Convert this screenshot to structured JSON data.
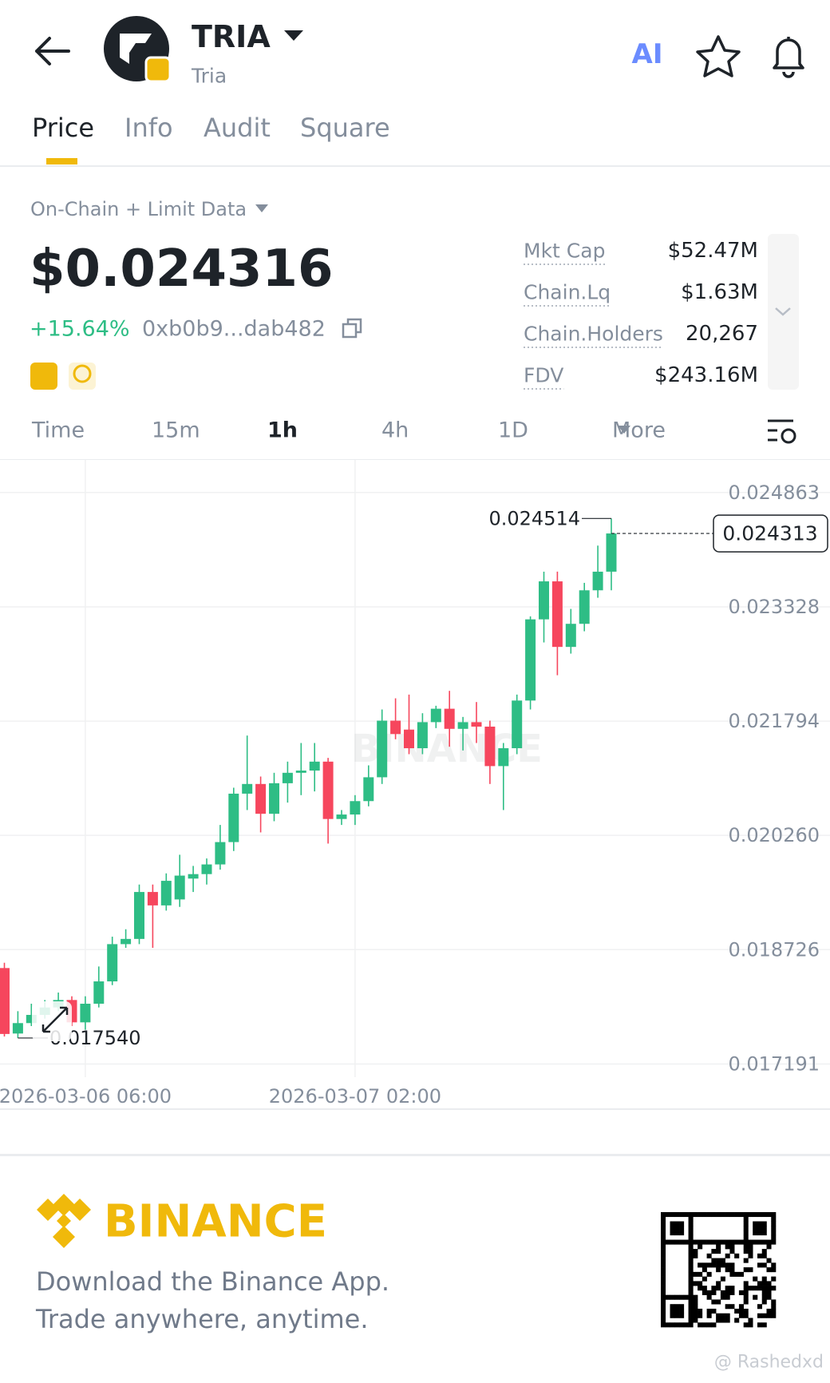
{
  "header": {
    "symbol": "TRIA",
    "name": "Tria",
    "ai_label": "AI"
  },
  "tabs": [
    "Price",
    "Info",
    "Audit",
    "Square"
  ],
  "active_tab": 0,
  "data_source": "On-Chain + Limit Data",
  "price": "$0.024316",
  "change": "+15.64%",
  "address": "0xb0b9...dab482",
  "stats": [
    {
      "label": "Mkt Cap",
      "value": "$52.47M"
    },
    {
      "label": "Chain.Lq",
      "value": "$1.63M"
    },
    {
      "label": "Chain.Holders",
      "value": "20,267"
    },
    {
      "label": "FDV",
      "value": "$243.16M"
    }
  ],
  "timeframes": [
    "Time",
    "15m",
    "1h",
    "4h",
    "1D",
    "More"
  ],
  "active_timeframe": 2,
  "chart_data": {
    "type": "candlestick",
    "categories": [
      null,
      null,
      null,
      null,
      null,
      null,
      "2026-03-06 06:00",
      null,
      null,
      null,
      null,
      null,
      null,
      null,
      null,
      null,
      null,
      null,
      null,
      null,
      null,
      null,
      null,
      null,
      null,
      null,
      "2026-03-07 02:00",
      null,
      null,
      null,
      null,
      null,
      null,
      null,
      null,
      null,
      null,
      null,
      null,
      null,
      null,
      null,
      null,
      null,
      null,
      null
    ],
    "open": [
      0.018479,
      0.0176,
      0.01774,
      0.01785,
      0.01795,
      0.01805,
      0.01775,
      0.018,
      0.0183,
      0.0188,
      0.01887,
      0.0195,
      0.01932,
      0.0194,
      0.01968,
      0.01974,
      0.01987,
      0.02017,
      0.02082,
      0.02095,
      0.02055,
      0.02096,
      0.0211,
      0.02113,
      0.02125,
      0.02048,
      0.02054,
      0.02072,
      0.02104,
      0.0218,
      0.02168,
      0.02143,
      0.02178,
      0.02196,
      0.02169,
      0.02178,
      0.02172,
      0.02119,
      0.02143,
      0.02207,
      0.02316,
      0.02367,
      0.02279,
      0.0231,
      0.02355,
      0.0238
    ],
    "high": [
      0.01855,
      0.0179,
      0.018,
      0.01805,
      0.01815,
      0.0181,
      0.0181,
      0.0185,
      0.0189,
      0.019,
      0.0196,
      0.0196,
      0.01975,
      0.02,
      0.01985,
      0.01995,
      0.0204,
      0.0209,
      0.0216,
      0.02105,
      0.0211,
      0.02125,
      0.0215,
      0.0215,
      0.0213,
      0.0206,
      0.0208,
      0.0212,
      0.02195,
      0.0221,
      0.02215,
      0.0219,
      0.022,
      0.0222,
      0.02185,
      0.02205,
      0.0218,
      0.0215,
      0.02215,
      0.0232,
      0.0238,
      0.0238,
      0.0233,
      0.02365,
      0.02415,
      0.024514
    ],
    "low": [
      0.01756,
      0.01754,
      0.0177,
      0.0178,
      0.0179,
      0.0177,
      0.01765,
      0.01795,
      0.01825,
      0.01875,
      0.0188,
      0.01875,
      0.01925,
      0.0193,
      0.0195,
      0.0196,
      0.0198,
      0.02005,
      0.0206,
      0.0203,
      0.02045,
      0.0207,
      0.0208,
      0.02085,
      0.02015,
      0.0204,
      0.0204,
      0.02065,
      0.02095,
      0.02155,
      0.02135,
      0.02135,
      0.0217,
      0.02145,
      0.0214,
      0.0215,
      0.02095,
      0.0206,
      0.02135,
      0.02195,
      0.02285,
      0.02241,
      0.0227,
      0.023,
      0.02345,
      0.02355
    ],
    "close": [
      0.017594,
      0.01774,
      0.01785,
      0.01795,
      0.01805,
      0.01775,
      0.018,
      0.0183,
      0.0188,
      0.01887,
      0.0195,
      0.01932,
      0.01965,
      0.01972,
      0.01974,
      0.01987,
      0.02017,
      0.02082,
      0.02095,
      0.02055,
      0.02096,
      0.0211,
      0.02113,
      0.02125,
      0.02048,
      0.02054,
      0.02072,
      0.02104,
      0.0218,
      0.02162,
      0.02143,
      0.02178,
      0.02196,
      0.02169,
      0.02178,
      0.02172,
      0.02119,
      0.02143,
      0.02207,
      0.02316,
      0.02367,
      0.02279,
      0.0231,
      0.02355,
      0.0238,
      0.024313
    ],
    "up_color": "#2ebd85",
    "down_color": "#f6465d",
    "ylim": [
      0.017014,
      0.0253
    ],
    "yticks": [
      0.024863,
      0.023328,
      0.021794,
      {
        "value": 0.02026,
        "label": "0.020260"
      },
      0.018726,
      0.017191
    ],
    "grid": true,
    "watermark": "BINANCE",
    "annotations": {
      "high": 0.024514,
      "low": {
        "value": 0.01754,
        "label": "0.017540"
      },
      "last": 0.024313
    }
  },
  "footer": {
    "brand": "BINANCE",
    "lines": [
      "Download the Binance App.",
      "Trade anywhere, anytime."
    ]
  },
  "watermark": "@ Rashedxd"
}
